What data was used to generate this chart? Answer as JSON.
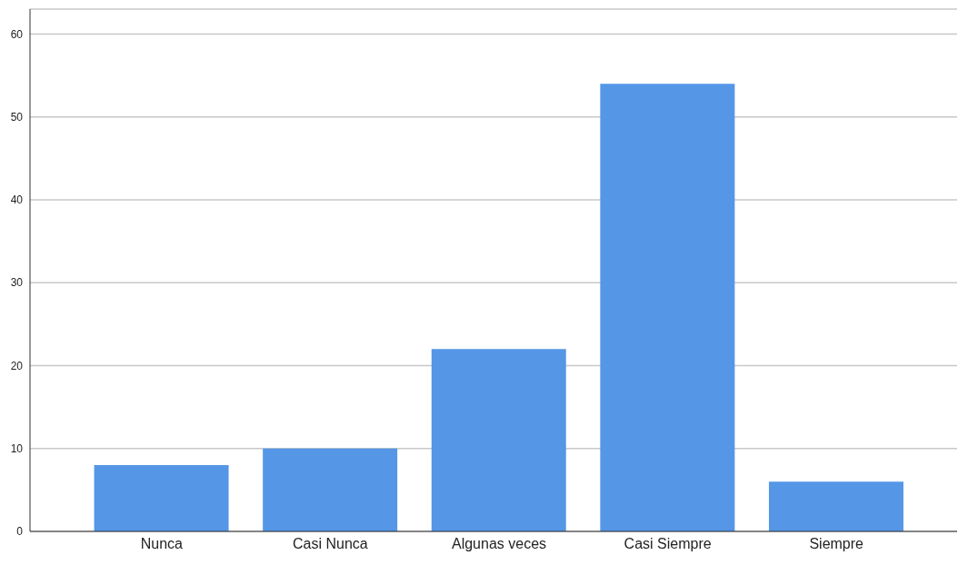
{
  "chart_data": {
    "type": "bar",
    "categories": [
      "Nunca",
      "Casi Nunca",
      "Algunas veces",
      "Casi Siempre",
      "Siempre"
    ],
    "values": [
      8,
      10,
      22,
      54,
      6
    ],
    "color": "#5596e6",
    "ylim": [
      0,
      63
    ],
    "yticks": [
      0,
      10,
      20,
      30,
      40,
      50,
      60
    ],
    "grid": "y"
  }
}
